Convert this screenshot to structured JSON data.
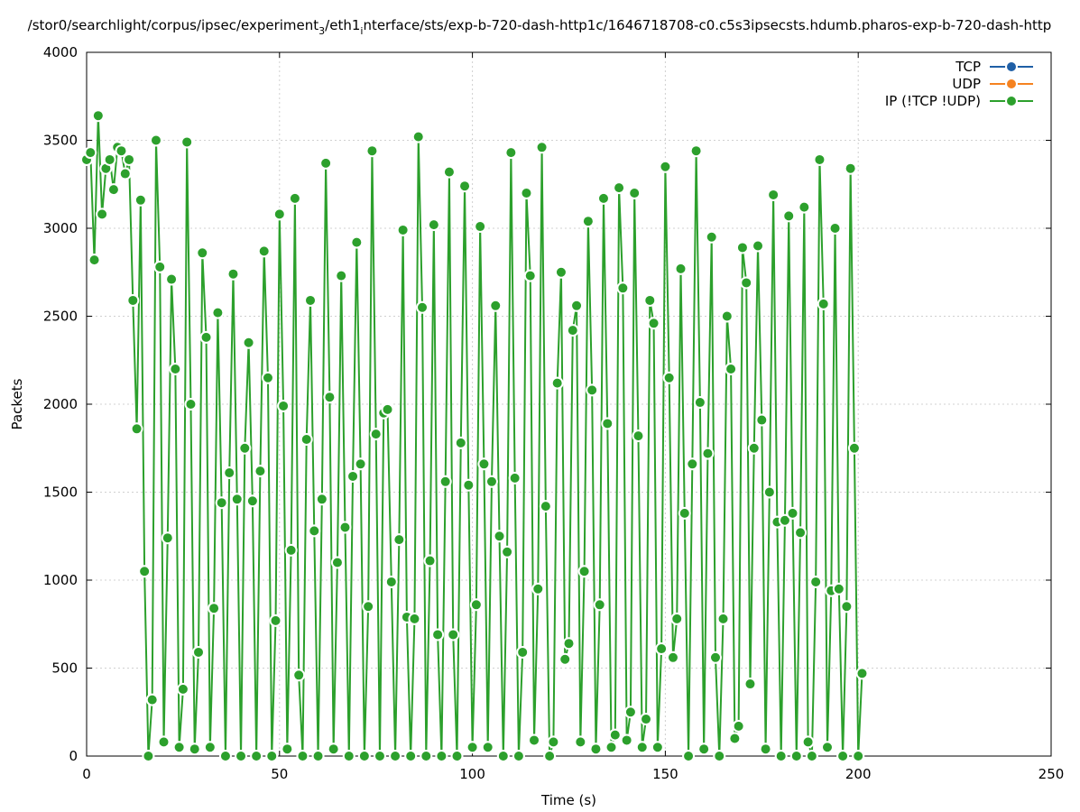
{
  "chart_data": {
    "type": "line",
    "title": "/stor0/searchlight/corpus/ipsec/experiment_3/eth1_interface/sts/exp-b-720-dash-http1c/1646718708-c0.c5s3ipsecsts.hdumb.pharos-exp-b-720-dash-http",
    "title_parts": {
      "a": "/stor0/searchlight/corpus/ipsec/experiment",
      "sub1": "3",
      "b": "/eth1",
      "sub2": "i",
      "c": "nterface/sts/exp-b-720-dash-http1c/1646718708-c0.c5s3ipsecsts.hdumb.pharos-exp-b-720-dash-http"
    },
    "xlabel": "Time (s)",
    "ylabel": "Packets",
    "xlim": [
      0,
      250
    ],
    "ylim": [
      0,
      4000
    ],
    "xticks": [
      "0",
      "50",
      "100",
      "150",
      "200",
      "250"
    ],
    "yticks": [
      "0",
      "500",
      "1000",
      "1500",
      "2000",
      "2500",
      "3000",
      "3500",
      "4000"
    ],
    "grid": true,
    "legend_position": "top-right",
    "series": [
      {
        "name": "TCP",
        "color": "#1f5fa6",
        "y": []
      },
      {
        "name": "UDP",
        "color": "#f58220",
        "y": []
      },
      {
        "name": "IP (!TCP  !UDP)",
        "color": "#2ca02c",
        "x_start": 0,
        "x_step": 1,
        "y": [
          3390,
          3430,
          2820,
          3640,
          3080,
          3340,
          3390,
          3220,
          3460,
          3440,
          3310,
          3390,
          2590,
          1860,
          3160,
          1050,
          0,
          320,
          3500,
          2780,
          80,
          1240,
          2710,
          2200,
          50,
          380,
          3490,
          2000,
          40,
          590,
          2860,
          2380,
          50,
          840,
          2520,
          1440,
          0,
          1610,
          2740,
          1460,
          0,
          1750,
          2350,
          1450,
          0,
          1620,
          2870,
          2150,
          0,
          770,
          3080,
          1990,
          40,
          1170,
          3170,
          460,
          0,
          1800,
          2590,
          1280,
          0,
          1460,
          3370,
          2040,
          40,
          1100,
          2730,
          1300,
          0,
          1590,
          2920,
          1660,
          0,
          850,
          3440,
          1830,
          0,
          1950,
          1970,
          990,
          0,
          1230,
          2990,
          790,
          0,
          780,
          3520,
          2550,
          0,
          1110,
          3020,
          690,
          0,
          1560,
          3320,
          690,
          0,
          1780,
          3240,
          1540,
          50,
          860,
          3010,
          1660,
          50,
          1560,
          2560,
          1250,
          0,
          1160,
          3430,
          1580,
          0,
          590,
          3200,
          2730,
          90,
          950,
          3460,
          1420,
          0,
          80,
          2120,
          2750,
          550,
          640,
          2420,
          2560,
          80,
          1050,
          3040,
          2080,
          40,
          860,
          3170,
          1890,
          50,
          120,
          3230,
          2660,
          90,
          250,
          3200,
          1820,
          50,
          210,
          2590,
          2460,
          50,
          610,
          3350,
          2150,
          560,
          780,
          2770,
          1380,
          0,
          1660,
          3440,
          2010,
          40,
          1720,
          2950,
          560,
          0,
          780,
          2500,
          2200,
          100,
          170,
          2890,
          2690,
          410,
          1750,
          2900,
          1910,
          40,
          1500,
          3190,
          1330,
          0,
          1340,
          3070,
          1380,
          0,
          1270,
          3120,
          80,
          0,
          990,
          3390,
          2570,
          50,
          940,
          3000,
          950,
          0,
          850,
          3340,
          1750,
          0,
          470
        ]
      }
    ]
  }
}
